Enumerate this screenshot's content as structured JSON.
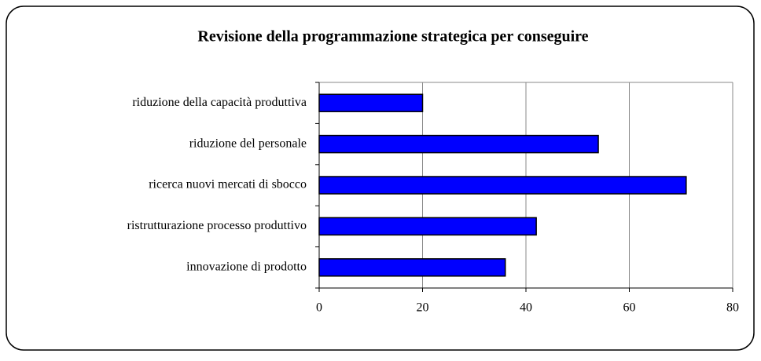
{
  "chart_data": {
    "type": "hbar",
    "title": "Revisione della programmazione strategica per conseguire",
    "categories": [
      "riduzione della capacità produttiva",
      "riduzione del personale",
      "ricerca nuovi mercati di sbocco",
      "ristrutturazione processo produttivo",
      "innovazione di prodotto"
    ],
    "values": [
      20,
      54,
      71,
      42,
      36
    ],
    "color": "#0000ff",
    "xlim": [
      0,
      80
    ],
    "xticks": [
      0,
      20,
      40,
      60,
      80
    ],
    "grid": true
  }
}
